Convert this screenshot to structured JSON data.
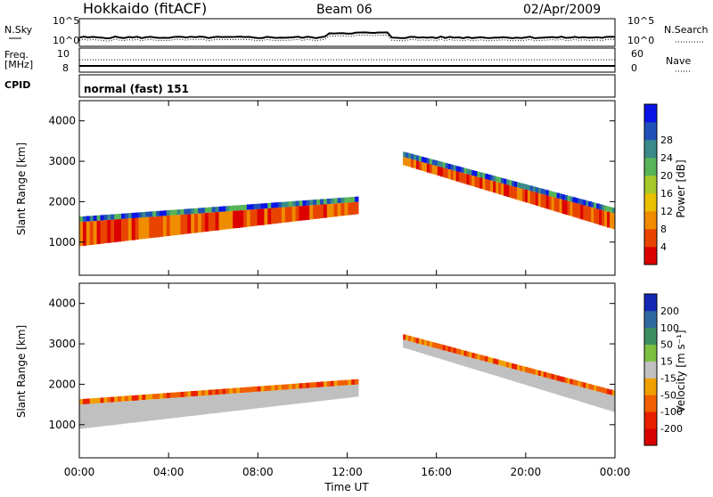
{
  "header": {
    "station": "Hokkaido (fitACF)",
    "beam": "Beam 06",
    "date": "02/Apr/2009"
  },
  "summary_panels": {
    "nsky_label": "N.Sky",
    "nsearch_label": "N.Search",
    "freq_label_1": "Freq.",
    "freq_label_2": "[MHz]",
    "nave_label": "Nave",
    "cpid_label": "CPID",
    "cpid_value": "normal (fast) 151",
    "noise_ticks": [
      "10^5",
      "10^0"
    ],
    "freq_ticks": [
      "10",
      "8"
    ],
    "nave_ticks": [
      "60",
      "0"
    ]
  },
  "xaxis": {
    "label": "Time UT",
    "ticks": [
      "00:00",
      "04:00",
      "08:00",
      "12:00",
      "16:00",
      "20:00",
      "00:00"
    ]
  },
  "chart_data": [
    {
      "type": "heatmap",
      "name": "power",
      "ylabel": "Slant Range [km]",
      "yticks": [
        1000,
        2000,
        3000,
        4000
      ],
      "ylim": [
        180,
        4500
      ],
      "xlim_hours": [
        0,
        24
      ],
      "colorbar_label": "Power [dB]",
      "colorbar_ticks": [
        4,
        8,
        12,
        16,
        20,
        24,
        28
      ],
      "colorbar_colors": [
        "#0a14e6",
        "#2050b8",
        "#3a8a8a",
        "#58b458",
        "#a8c82a",
        "#e8c000",
        "#f08c00",
        "#e84400",
        "#dc0000"
      ],
      "features": [
        {
          "desc": "strong band",
          "t_start": 0,
          "t_end": 12.5,
          "range_start": [
            900,
            1500
          ],
          "range_end": [
            1700,
            2000
          ],
          "level_db": 28
        },
        {
          "desc": "descending arc",
          "t_start": 14.5,
          "t_end": 24,
          "range_start": [
            2900,
            3100
          ],
          "range_end": [
            1300,
            1700
          ],
          "level_db": 24
        }
      ]
    },
    {
      "type": "heatmap",
      "name": "velocity",
      "ylabel": "Slant Range [km]",
      "yticks": [
        1000,
        2000,
        3000,
        4000
      ],
      "ylim": [
        180,
        4500
      ],
      "xlim_hours": [
        0,
        24
      ],
      "colorbar_label": "Velocity [m s⁻¹]",
      "colorbar_ticks": [
        200,
        100,
        50,
        15,
        -15,
        -50,
        -100,
        -200
      ],
      "colorbar_colors": [
        "#1428b4",
        "#2e6aa0",
        "#3c9060",
        "#7cc040",
        "#c0c0c0",
        "#f0a000",
        "#f06000",
        "#e82000",
        "#d80000"
      ],
      "features": [
        {
          "desc": "ground scatter band",
          "t_start": 0,
          "t_end": 12.5,
          "range_start": [
            900,
            1500
          ],
          "range_end": [
            1700,
            2000
          ],
          "velocity": 0
        },
        {
          "desc": "ground scatter arc",
          "t_start": 14.5,
          "t_end": 24,
          "range_start": [
            2900,
            3100
          ],
          "range_end": [
            1300,
            1700
          ],
          "velocity": 0
        }
      ]
    }
  ]
}
